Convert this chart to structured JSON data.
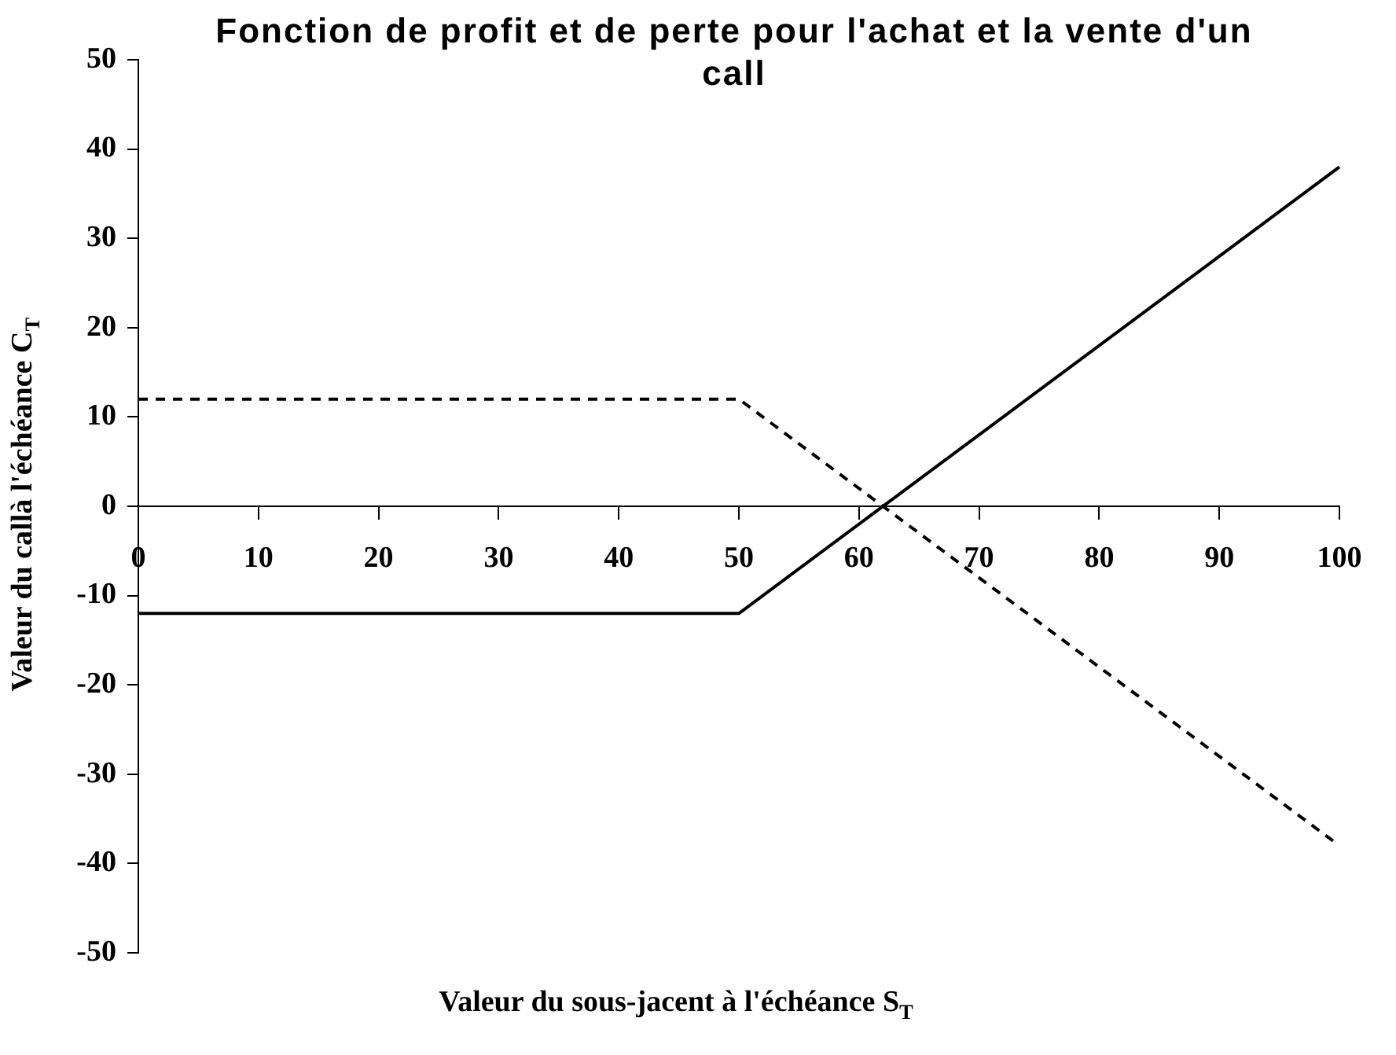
{
  "chart_data": {
    "type": "line",
    "title": "Fonction de profit et de perte pour l'achat et la vente d'un call",
    "xlabel": "Valeur du sous-jacent à l'échéance S$_{T}$",
    "ylabel": "Valeur du callà l'échéance C$_{T}$",
    "x": [
      0,
      50,
      100
    ],
    "series": [
      {
        "color": "#000000",
        "line_style": "solid",
        "values": [
          -12,
          -12,
          38
        ]
      },
      {
        "color": "#000000",
        "line_style": "dashed",
        "values": [
          12,
          12,
          -38
        ]
      }
    ],
    "xlim": [
      0,
      100
    ],
    "xticks": [
      0,
      10,
      20,
      30,
      40,
      50,
      60,
      70,
      80,
      90,
      100
    ],
    "ylim": [
      -50,
      50
    ],
    "yticks": [
      -50,
      -40,
      -30,
      -20,
      -10,
      0,
      10,
      20,
      30,
      40,
      50
    ],
    "grid": false,
    "legend": false,
    "marker": "none"
  }
}
